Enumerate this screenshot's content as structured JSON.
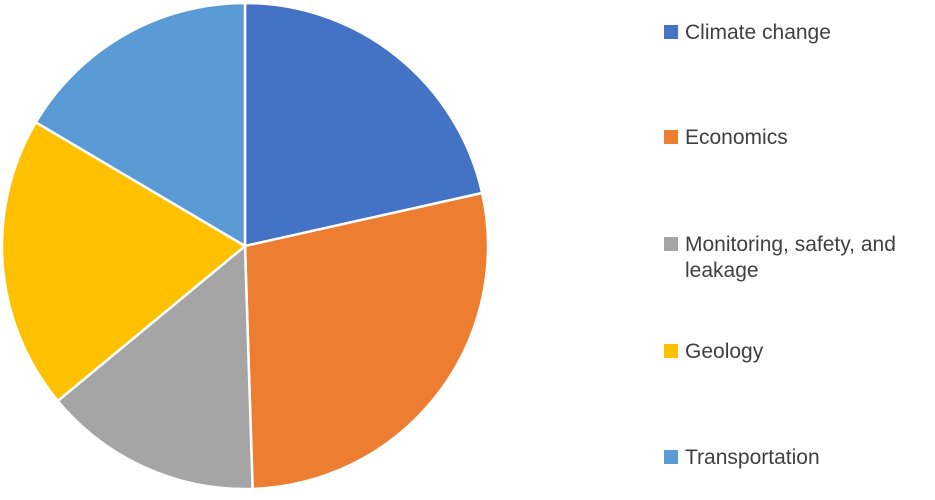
{
  "chart_data": {
    "type": "pie",
    "title": "",
    "start_angle_deg": 0,
    "direction": "clockwise",
    "legend_position": "right",
    "slices": [
      {
        "label": "Climate change",
        "value": 21.5,
        "color": "#4472C4"
      },
      {
        "label": "Economics",
        "value": 28.0,
        "color": "#ED7D31"
      },
      {
        "label": "Monitoring, safety, and leakage",
        "value": 14.5,
        "color": "#A5A5A5"
      },
      {
        "label": "Geology",
        "value": 19.5,
        "color": "#FFC000"
      },
      {
        "label": "Transportation",
        "value": 16.5,
        "color": "#5B9BD5"
      }
    ]
  }
}
